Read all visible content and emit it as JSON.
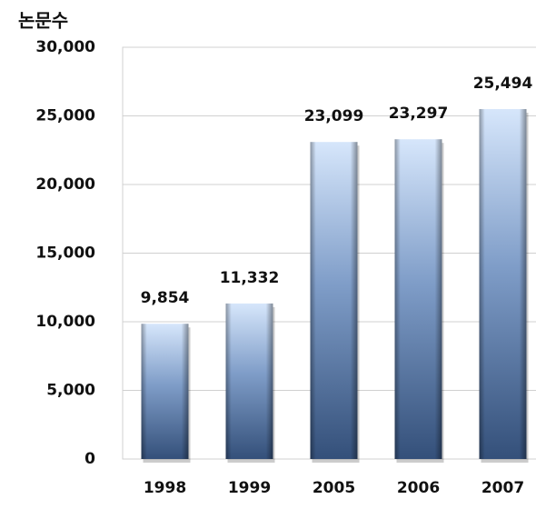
{
  "chart_data": {
    "type": "bar",
    "ylabel": "논문수",
    "categories": [
      "1998",
      "1999",
      "2005",
      "2006",
      "2007"
    ],
    "values": [
      9854,
      11332,
      23099,
      23297,
      25494
    ],
    "value_labels": [
      "9,854",
      "11,332",
      "23,099",
      "23,297",
      "25,494"
    ],
    "color": "#7f9dc8",
    "ylim": [
      0,
      30000
    ],
    "yticks": [
      0,
      {
        "value": 5000,
        "label": "5,000"
      },
      {
        "value": 10000,
        "label": "10,000"
      },
      {
        "value": 15000,
        "label": "15,000"
      },
      {
        "value": 20000,
        "label": "20,000"
      },
      {
        "value": 25000,
        "label": "25,000"
      },
      {
        "value": 30000,
        "label": "30,000"
      }
    ],
    "grid": true
  }
}
